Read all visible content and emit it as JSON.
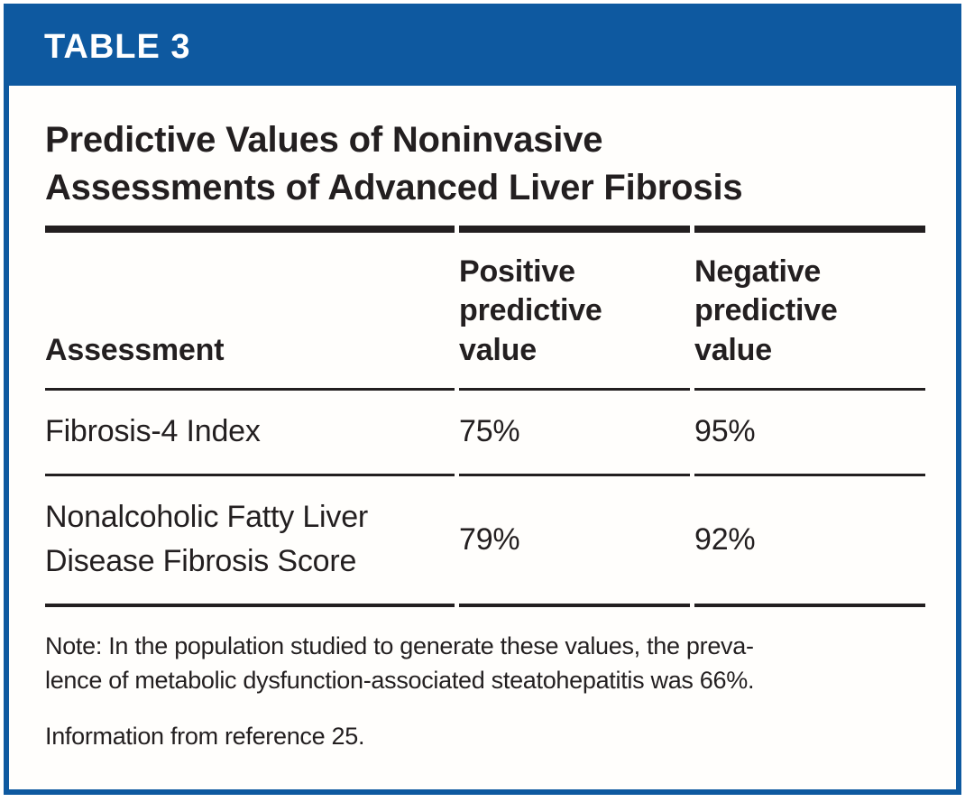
{
  "header": {
    "label": "TABLE 3"
  },
  "title": {
    "full": "Predictive Values of Noninvasive Assessments of Advanced Liver Fibrosis",
    "line1": "Predictive Values of Noninvasive",
    "line2": "Assessments of Advanced Liver Fibrosis"
  },
  "table": {
    "columns": {
      "assessment": "Assessment",
      "ppv": "Positive predictive value",
      "npv": "Negative predictive value"
    },
    "rows": [
      {
        "assessment": "Fibrosis-4 Index",
        "ppv": "75%",
        "npv": "95%"
      },
      {
        "assessment": "Nonalcoholic Fatty Liver Disease Fibrosis Score",
        "ppv": "79%",
        "npv": "92%"
      }
    ]
  },
  "note": {
    "full": "Note: In the population studied to generate these values, the prevalence of metabolic dysfunction-associated steatohepatitis was 66%.",
    "line1": "Note: In the population studied to generate these values, the preva-",
    "line2": "lence of metabolic dysfunction-associated steatohepatitis was 66%."
  },
  "source": "Information from reference 25.",
  "colors": {
    "brand_blue": "#0e59a0",
    "text_ink": "#231f20"
  },
  "chart_data": {
    "type": "table",
    "title": "Predictive Values of Noninvasive Assessments of Advanced Liver Fibrosis",
    "columns": [
      "Assessment",
      "Positive predictive value",
      "Negative predictive value"
    ],
    "rows": [
      [
        "Fibrosis-4 Index",
        "75%",
        "95%"
      ],
      [
        "Nonalcoholic Fatty Liver Disease Fibrosis Score",
        "79%",
        "92%"
      ]
    ],
    "notes": [
      "Note: In the population studied to generate these values, the prevalence of metabolic dysfunction-associated steatohepatitis was 66%.",
      "Information from reference 25."
    ]
  }
}
